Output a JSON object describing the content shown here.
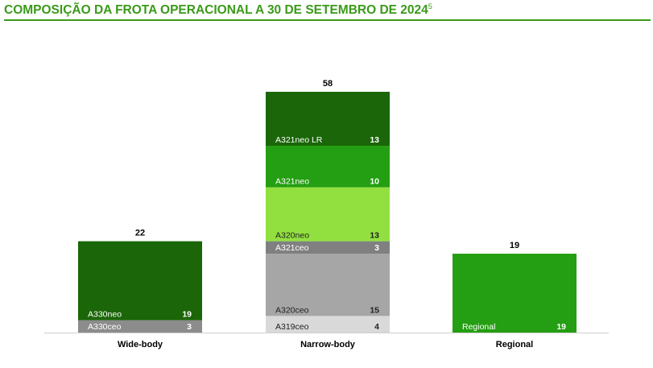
{
  "header": {
    "title": "COMPOSIÇÃO DA FROTA OPERACIONAL A 30 DE SETEMBRO DE 2024",
    "footnote_mark": "5"
  },
  "chart_data": {
    "type": "bar",
    "stacked": true,
    "title": "COMPOSIÇÃO DA FROTA OPERACIONAL A 30 DE SETEMBRO DE 2024",
    "categories": [
      "Wide-body",
      "Narrow-body",
      "Regional"
    ],
    "totals": [
      22,
      58,
      19
    ],
    "ylim": [
      0,
      58
    ],
    "grid": false,
    "legend": "none",
    "stacks": [
      {
        "category": "Wide-body",
        "segments": [
          {
            "name": "A330ceo",
            "value": 3,
            "color": "#8c8c8c"
          },
          {
            "name": "A330neo",
            "value": 19,
            "color": "#1a6608"
          }
        ]
      },
      {
        "category": "Narrow-body",
        "segments": [
          {
            "name": "A319ceo",
            "value": 4,
            "color": "#d9d9d9"
          },
          {
            "name": "A320ceo",
            "value": 15,
            "color": "#a6a6a6"
          },
          {
            "name": "A321ceo",
            "value": 3,
            "color": "#808080"
          },
          {
            "name": "A320neo",
            "value": 13,
            "color": "#92e040"
          },
          {
            "name": "A321neo",
            "value": 10,
            "color": "#249e12"
          },
          {
            "name": "A321neo LR",
            "value": 13,
            "color": "#1a6608"
          }
        ]
      },
      {
        "category": "Regional",
        "segments": [
          {
            "name": "Regional",
            "value": 19,
            "color": "#249e12"
          }
        ]
      }
    ]
  }
}
